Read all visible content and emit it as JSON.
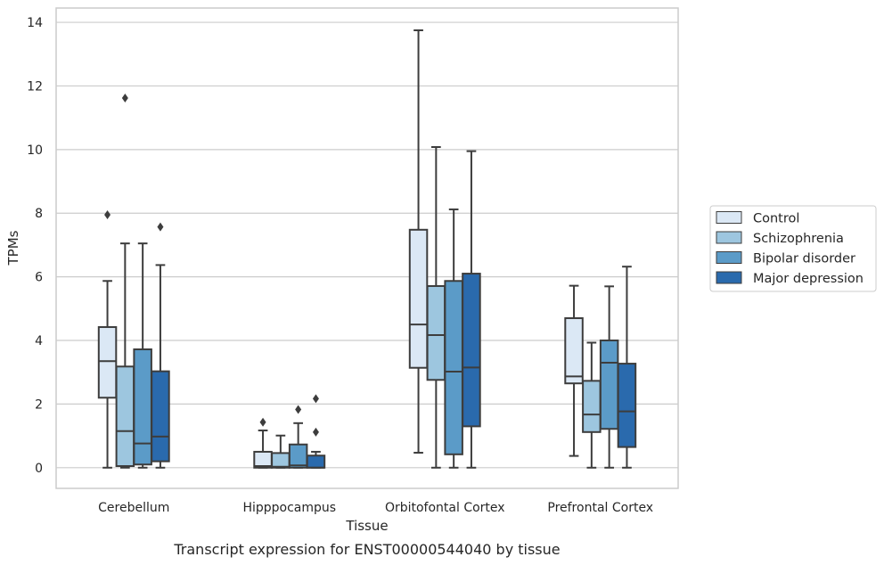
{
  "chart_data": {
    "type": "box",
    "title": "",
    "caption": "Transcript expression for ENST00000544040 by tissue",
    "xlabel": "Tissue",
    "ylabel": "TPMs",
    "ylim": [
      -0.65,
      14.45
    ],
    "yticks": [
      "0",
      "2",
      "4",
      "6",
      "8",
      "10",
      "12",
      "14"
    ],
    "grid": "horizontal",
    "legend_placement": "right",
    "categories": [
      "Cerebellum",
      "Hipppocampus",
      "Orbitofontal Cortex",
      "Prefrontal Cortex"
    ],
    "series": [
      {
        "name": "Control",
        "color": "#dbe8f5",
        "boxes": [
          {
            "whisker_low": 0.0,
            "q1": 2.2,
            "median": 3.35,
            "q3": 4.42,
            "whisker_high": 5.87,
            "outliers": [
              7.95
            ]
          },
          {
            "whisker_low": 0.0,
            "q1": 0.0,
            "median": 0.05,
            "q3": 0.5,
            "whisker_high": 1.17,
            "outliers": [
              1.43
            ]
          },
          {
            "whisker_low": 0.47,
            "q1": 3.14,
            "median": 4.5,
            "q3": 7.48,
            "whisker_high": 13.75,
            "outliers": []
          },
          {
            "whisker_low": 0.37,
            "q1": 2.65,
            "median": 2.87,
            "q3": 4.7,
            "whisker_high": 5.72,
            "outliers": []
          }
        ]
      },
      {
        "name": "Schizophrenia",
        "color": "#9dc6df",
        "boxes": [
          {
            "whisker_low": 0.0,
            "q1": 0.05,
            "median": 1.15,
            "q3": 3.18,
            "whisker_high": 7.05,
            "outliers": [
              11.62
            ]
          },
          {
            "whisker_low": 0.0,
            "q1": 0.0,
            "median": 0.03,
            "q3": 0.46,
            "whisker_high": 1.01,
            "outliers": []
          },
          {
            "whisker_low": 0.0,
            "q1": 2.76,
            "median": 4.17,
            "q3": 5.71,
            "whisker_high": 10.08,
            "outliers": []
          },
          {
            "whisker_low": 0.0,
            "q1": 1.12,
            "median": 1.67,
            "q3": 2.73,
            "whisker_high": 3.93,
            "outliers": []
          }
        ]
      },
      {
        "name": "Bipolar disorder",
        "color": "#5b9bc8",
        "boxes": [
          {
            "whisker_low": 0.0,
            "q1": 0.1,
            "median": 0.76,
            "q3": 3.72,
            "whisker_high": 7.05,
            "outliers": []
          },
          {
            "whisker_low": 0.0,
            "q1": 0.0,
            "median": 0.07,
            "q3": 0.73,
            "whisker_high": 1.4,
            "outliers": [
              1.83
            ]
          },
          {
            "whisker_low": 0.0,
            "q1": 0.42,
            "median": 3.02,
            "q3": 5.87,
            "whisker_high": 8.12,
            "outliers": []
          },
          {
            "whisker_low": 0.0,
            "q1": 1.22,
            "median": 3.3,
            "q3": 4.0,
            "whisker_high": 5.7,
            "outliers": []
          }
        ]
      },
      {
        "name": "Major depression",
        "color": "#2a6aad",
        "boxes": [
          {
            "whisker_low": 0.0,
            "q1": 0.2,
            "median": 0.98,
            "q3": 3.03,
            "whisker_high": 6.37,
            "outliers": [
              7.57
            ]
          },
          {
            "whisker_low": 0.0,
            "q1": 0.0,
            "median": 0.0,
            "q3": 0.38,
            "whisker_high": 0.5,
            "outliers": [
              1.12,
              2.17
            ]
          },
          {
            "whisker_low": 0.0,
            "q1": 1.3,
            "median": 3.15,
            "q3": 6.1,
            "whisker_high": 9.95,
            "outliers": []
          },
          {
            "whisker_low": 0.0,
            "q1": 0.65,
            "median": 1.77,
            "q3": 3.27,
            "whisker_high": 6.32,
            "outliers": []
          }
        ]
      }
    ]
  }
}
